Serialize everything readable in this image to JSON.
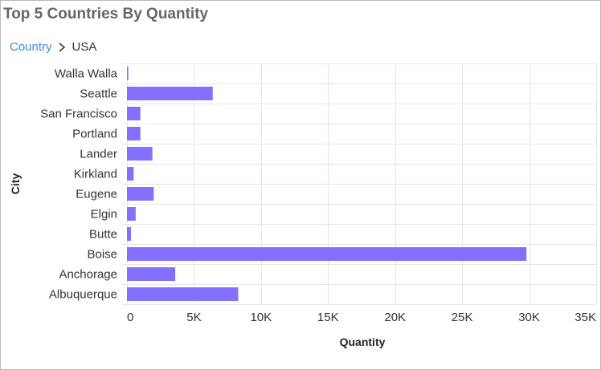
{
  "widget": {
    "title": "Top 5 Countries By Quantity"
  },
  "breadcrumb": {
    "parent": "Country",
    "current": "USA"
  },
  "colors": {
    "bar": "#8470ff",
    "grid": "#e6e6e6",
    "axis_text": "#333333",
    "link": "#3a8ee6"
  },
  "icons": {
    "separator": "chevron-right-icon"
  },
  "chart_data": {
    "type": "bar",
    "orientation": "horizontal",
    "xlabel": "Quantity",
    "ylabel": "City",
    "xlim": [
      0,
      35000
    ],
    "xticks": [
      0,
      5000,
      10000,
      15000,
      20000,
      25000,
      30000,
      35000
    ],
    "xtick_labels": [
      "0",
      "5K",
      "10K",
      "15K",
      "20K",
      "25K",
      "30K",
      "35K"
    ],
    "grid": true,
    "legend": "none",
    "categories": [
      "Walla Walla",
      "Seattle",
      "San Francisco",
      "Portland",
      "Lander",
      "Kirkland",
      "Eugene",
      "Elgin",
      "Butte",
      "Boise",
      "Anchorage",
      "Albuquerque"
    ],
    "values": [
      100,
      6400,
      1000,
      1000,
      1900,
      500,
      2000,
      650,
      300,
      29800,
      3600,
      8300
    ]
  }
}
